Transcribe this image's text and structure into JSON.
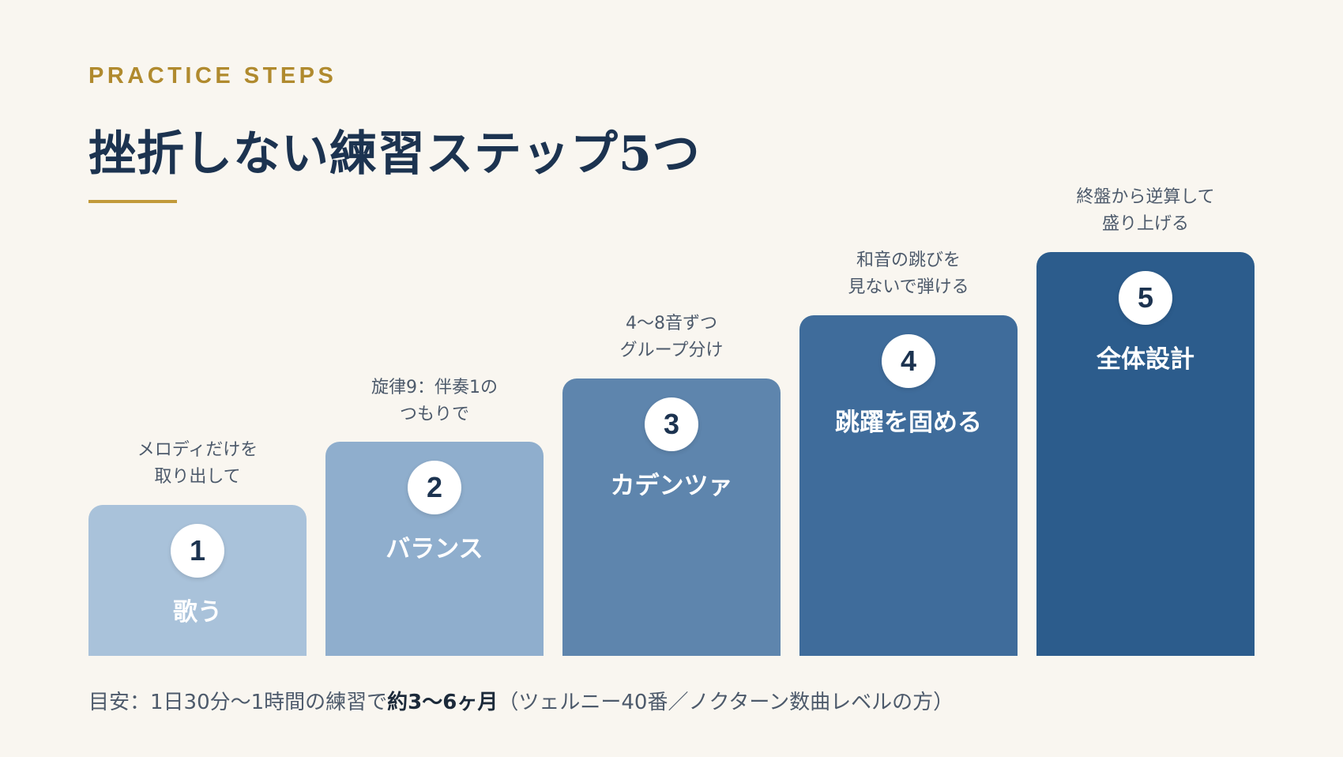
{
  "header": {
    "eyebrow": "PRACTICE STEPS",
    "title": "挫折しない練習ステップ5つ"
  },
  "colors": {
    "background": "#f9f6f0",
    "accent_gold": "#c29a3a",
    "title_navy": "#1c3350",
    "step_fills": [
      "#a9c2da",
      "#8faecd",
      "#5e85ad",
      "#3f6c9b",
      "#2c5c8c"
    ]
  },
  "steps": [
    {
      "number": "1",
      "name": "歌う",
      "caption_line1": "メロディだけを",
      "caption_line2": "取り出して"
    },
    {
      "number": "2",
      "name": "バランス",
      "caption_line1": "旋律9：伴奏1の",
      "caption_line2": "つもりで"
    },
    {
      "number": "3",
      "name": "カデンツァ",
      "caption_line1": "4〜8音ずつ",
      "caption_line2": "グループ分け"
    },
    {
      "number": "4",
      "name": "跳躍を固める",
      "caption_line1": "和音の跳びを",
      "caption_line2": "見ないで弾ける"
    },
    {
      "number": "5",
      "name": "全体設計",
      "caption_line1": "終盤から逆算して",
      "caption_line2": "盛り上げる"
    }
  ],
  "footer": {
    "prefix": "目安：1日30分〜1時間の練習で",
    "emphasis": "約3〜6ヶ月",
    "suffix": "（ツェルニー40番／ノクターン数曲レベルの方）"
  }
}
